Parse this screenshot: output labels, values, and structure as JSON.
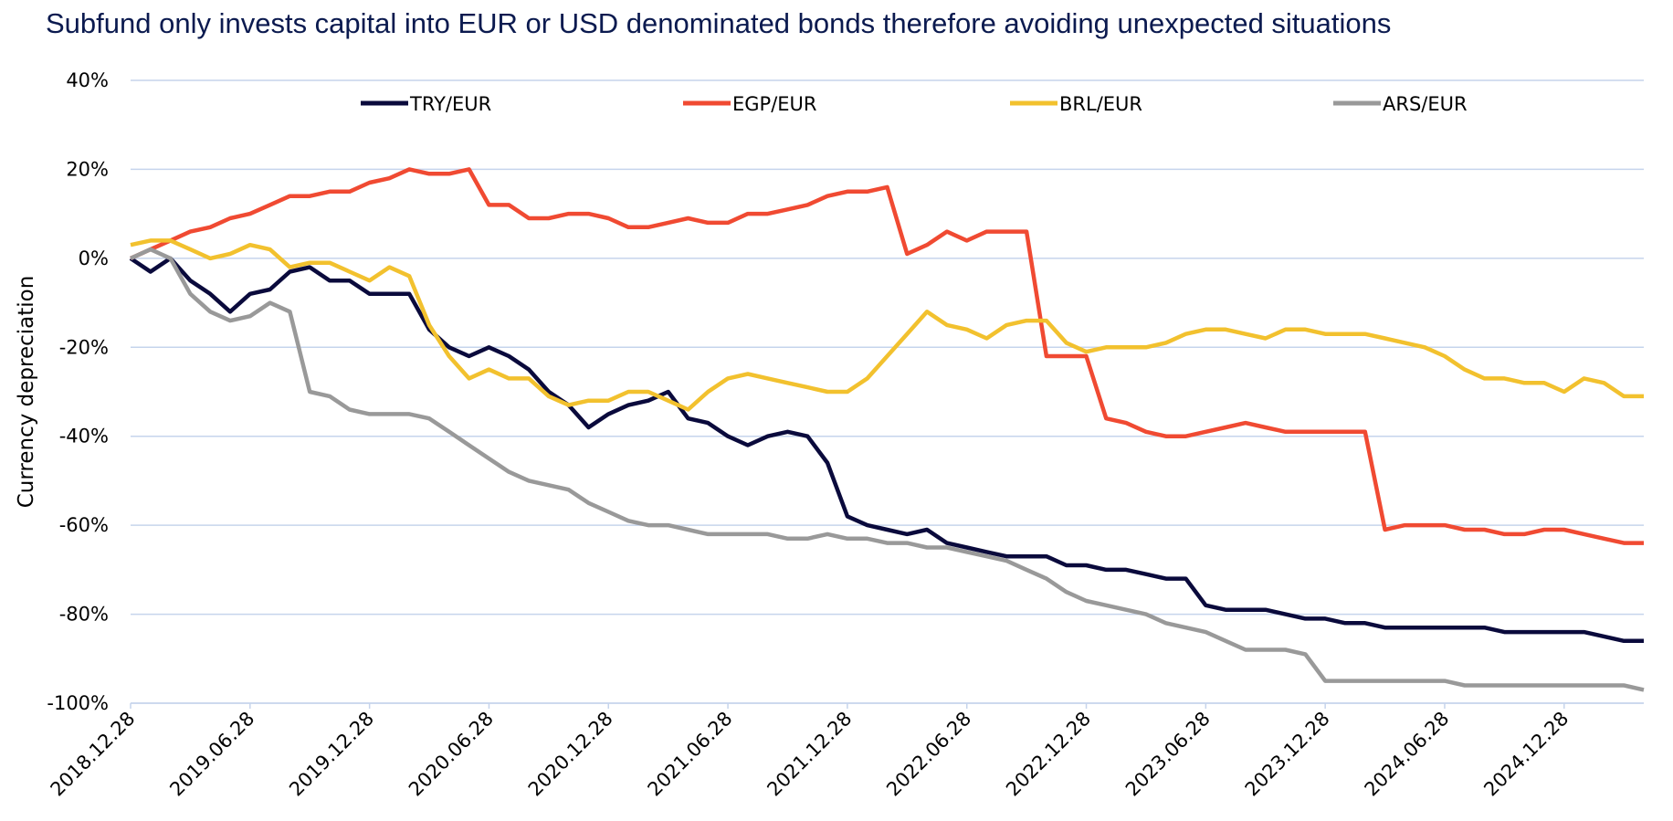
{
  "chart_data": {
    "type": "line",
    "title": "Subfund only invests capital into EUR or USD denominated bonds therefore avoiding unexpected situations",
    "y_label": "Currency depreciation",
    "legend": "top",
    "grid": true,
    "ylim": [
      -100,
      40
    ],
    "yticks": [
      {
        "value": -100,
        "label": "-100%"
      },
      {
        "value": -80,
        "label": "-80%"
      },
      {
        "value": -60,
        "label": "-60%"
      },
      {
        "value": -40,
        "label": "-40%"
      },
      {
        "value": -20,
        "label": "-20%"
      },
      {
        "value": 0,
        "label": "0%"
      },
      {
        "value": 20,
        "label": "20%"
      },
      {
        "value": 40,
        "label": "40%"
      }
    ],
    "xlim": [
      "2018.12.28",
      "2025.04.28"
    ],
    "xticks": [
      "2018.12.28",
      "2019.06.28",
      "2019.12.28",
      "2020.06.28",
      "2020.12.28",
      "2021.06.28",
      "2021.12.28",
      "2022.06.28",
      "2022.12.28",
      "2023.06.28",
      "2023.12.28",
      "2024.06.28",
      "2024.12.28"
    ],
    "x": [
      "2018.12.28",
      "2019.01.28",
      "2019.02.28",
      "2019.03.28",
      "2019.04.28",
      "2019.05.28",
      "2019.06.28",
      "2019.07.28",
      "2019.08.28",
      "2019.09.28",
      "2019.10.28",
      "2019.11.28",
      "2019.12.28",
      "2020.01.28",
      "2020.02.28",
      "2020.03.28",
      "2020.04.28",
      "2020.05.28",
      "2020.06.28",
      "2020.07.28",
      "2020.08.28",
      "2020.09.28",
      "2020.10.28",
      "2020.11.28",
      "2020.12.28",
      "2021.01.28",
      "2021.02.28",
      "2021.03.28",
      "2021.04.28",
      "2021.05.28",
      "2021.06.28",
      "2021.07.28",
      "2021.08.28",
      "2021.09.28",
      "2021.10.28",
      "2021.11.28",
      "2021.12.28",
      "2022.01.28",
      "2022.02.28",
      "2022.03.28",
      "2022.04.28",
      "2022.05.28",
      "2022.06.28",
      "2022.07.28",
      "2022.08.28",
      "2022.09.28",
      "2022.10.28",
      "2022.11.28",
      "2022.12.28",
      "2023.01.28",
      "2023.02.28",
      "2023.03.28",
      "2023.04.28",
      "2023.05.28",
      "2023.06.28",
      "2023.07.28",
      "2023.08.28",
      "2023.09.28",
      "2023.10.28",
      "2023.11.28",
      "2023.12.28",
      "2024.01.28",
      "2024.02.28",
      "2024.03.28",
      "2024.04.28",
      "2024.05.28",
      "2024.06.28",
      "2024.07.28",
      "2024.08.28",
      "2024.09.28",
      "2024.10.28",
      "2024.11.28",
      "2024.12.28",
      "2025.01.28",
      "2025.02.28",
      "2025.03.28",
      "2025.04.28"
    ],
    "series": [
      {
        "name": "TRY/EUR",
        "color": "#0a0a3c",
        "values": [
          0,
          -3,
          0,
          -5,
          -8,
          -12,
          -8,
          -7,
          -3,
          -2,
          -5,
          -5,
          -8,
          -8,
          -8,
          -16,
          -20,
          -22,
          -20,
          -22,
          -25,
          -30,
          -33,
          -38,
          -35,
          -33,
          -32,
          -30,
          -36,
          -37,
          -40,
          -42,
          -40,
          -39,
          -40,
          -46,
          -58,
          -60,
          -61,
          -62,
          -61,
          -64,
          -65,
          -66,
          -67,
          -67,
          -67,
          -69,
          -69,
          -70,
          -70,
          -71,
          -72,
          -72,
          -78,
          -79,
          -79,
          -79,
          -80,
          -81,
          -81,
          -82,
          -82,
          -83,
          -83,
          -83,
          -83,
          -83,
          -83,
          -84,
          -84,
          -84,
          -84,
          -84,
          -85,
          -86,
          -86
        ]
      },
      {
        "name": "EGP/EUR",
        "color": "#f04a32",
        "values": [
          0,
          2,
          4,
          6,
          7,
          9,
          10,
          12,
          14,
          14,
          15,
          15,
          17,
          18,
          20,
          19,
          19,
          20,
          12,
          12,
          9,
          9,
          10,
          10,
          9,
          7,
          7,
          8,
          9,
          8,
          8,
          10,
          10,
          11,
          12,
          14,
          15,
          15,
          16,
          1,
          3,
          6,
          4,
          6,
          6,
          6,
          -22,
          -22,
          -22,
          -36,
          -37,
          -39,
          -40,
          -40,
          -39,
          -38,
          -37,
          -38,
          -39,
          -39,
          -39,
          -39,
          -39,
          -61,
          -60,
          -60,
          -60,
          -61,
          -61,
          -62,
          -62,
          -61,
          -61,
          -62,
          -63,
          -64,
          -64
        ]
      },
      {
        "name": "BRL/EUR",
        "color": "#f2c12e",
        "values": [
          3,
          4,
          4,
          2,
          0,
          1,
          3,
          2,
          -2,
          -1,
          -1,
          -3,
          -5,
          -2,
          -4,
          -15,
          -22,
          -27,
          -25,
          -27,
          -27,
          -31,
          -33,
          -32,
          -32,
          -30,
          -30,
          -32,
          -34,
          -30,
          -27,
          -26,
          -27,
          -28,
          -29,
          -30,
          -30,
          -27,
          -22,
          -17,
          -12,
          -15,
          -16,
          -18,
          -15,
          -14,
          -14,
          -19,
          -21,
          -20,
          -20,
          -20,
          -19,
          -17,
          -16,
          -16,
          -17,
          -18,
          -16,
          -16,
          -17,
          -17,
          -17,
          -18,
          -19,
          -20,
          -22,
          -25,
          -27,
          -27,
          -28,
          -28,
          -30,
          -27,
          -28,
          -31,
          -31
        ]
      },
      {
        "name": "ARS/EUR",
        "color": "#999999",
        "values": [
          0,
          2,
          0,
          -8,
          -12,
          -14,
          -13,
          -10,
          -12,
          -30,
          -31,
          -34,
          -35,
          -35,
          -35,
          -36,
          -39,
          -42,
          -45,
          -48,
          -50,
          -51,
          -52,
          -55,
          -57,
          -59,
          -60,
          -60,
          -61,
          -62,
          -62,
          -62,
          -62,
          -63,
          -63,
          -62,
          -63,
          -63,
          -64,
          -64,
          -65,
          -65,
          -66,
          -67,
          -68,
          -70,
          -72,
          -75,
          -77,
          -78,
          -79,
          -80,
          -82,
          -83,
          -84,
          -86,
          -88,
          -88,
          -88,
          -89,
          -95,
          -95,
          -95,
          -95,
          -95,
          -95,
          -95,
          -96,
          -96,
          -96,
          -96,
          -96,
          -96,
          -96,
          -96,
          -96,
          -97
        ]
      }
    ]
  }
}
